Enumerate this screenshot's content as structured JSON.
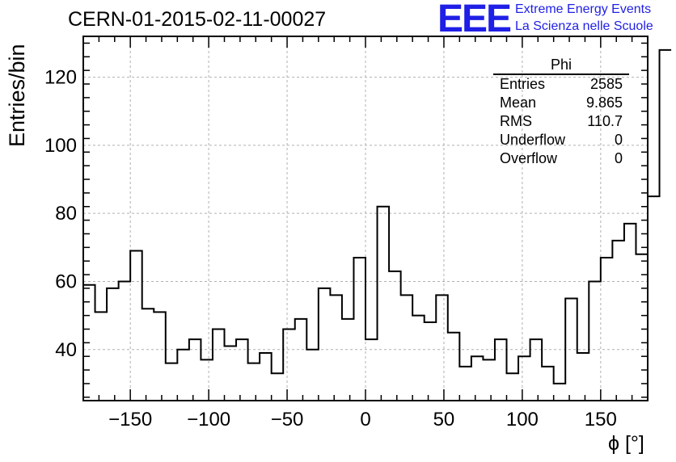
{
  "header": {
    "title": "CERN-01-2015-02-11-00027",
    "logo": "EEE",
    "logo_line1": "Extreme Energy Events",
    "logo_line2": "La Scienza nelle Scuole"
  },
  "stats_box": {
    "title": "Phi",
    "rows": [
      {
        "label": "Entries",
        "value": "2585"
      },
      {
        "label": "Mean",
        "value": "9.865"
      },
      {
        "label": "RMS",
        "value": "110.7"
      },
      {
        "label": "Underflow",
        "value": "0"
      },
      {
        "label": "Overflow",
        "value": "0"
      }
    ]
  },
  "chart_data": {
    "type": "bar",
    "histogram": true,
    "xlabel": "ϕ [°]",
    "ylabel": "Entries/bin",
    "xlim": [
      -180,
      180
    ],
    "ylim": [
      25,
      132
    ],
    "grid": true,
    "bin_width": 7.5,
    "x_ticks": [
      -150,
      -100,
      -50,
      0,
      50,
      100,
      150
    ],
    "y_ticks": [
      40,
      60,
      80,
      100,
      120
    ],
    "tick_labels_x": [
      "−150",
      "−100",
      "−50",
      "0",
      "50",
      "100",
      "150"
    ],
    "tick_labels_y": [
      "40",
      "60",
      "80",
      "100",
      "120"
    ],
    "values": [
      59,
      51,
      58,
      60,
      69,
      52,
      51,
      36,
      40,
      43,
      37,
      46,
      41,
      43,
      36,
      39,
      33,
      46,
      49,
      40,
      58,
      56,
      49,
      67,
      43,
      82,
      63,
      56,
      50,
      48,
      56,
      45,
      35,
      38,
      37,
      43,
      33,
      38,
      43,
      35,
      30,
      55,
      39,
      60,
      67,
      72,
      77,
      68,
      85,
      128
    ]
  },
  "colors": {
    "line": "#000000",
    "grid": "#b0b0b0",
    "logo": "#1f1fe6"
  }
}
